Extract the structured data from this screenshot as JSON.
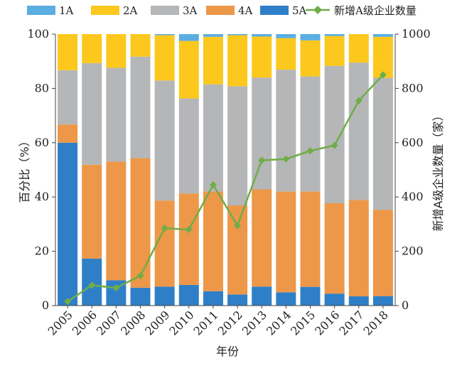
{
  "chart_data": {
    "type": "bar",
    "stacked": true,
    "x": [
      "2005",
      "2006",
      "2007",
      "2008",
      "2009",
      "2010",
      "2011",
      "2012",
      "2013",
      "2014",
      "2015",
      "2016",
      "2017",
      "2018"
    ],
    "xlabel": "年份",
    "ylabel": "百分比（%）",
    "y2label": "新增A级企业数量（家）",
    "ylim": [
      0,
      100
    ],
    "y2lim": [
      0,
      1000
    ],
    "yticks": [
      "0",
      "20",
      "40",
      "60",
      "80",
      "100"
    ],
    "y2ticks": [
      "0",
      "200",
      "400",
      "600",
      "800",
      "1000"
    ],
    "legend_position": "top",
    "series": [
      {
        "name": "5A",
        "color": "#2f7fc8",
        "values": [
          60.0,
          17.3,
          9.3,
          6.6,
          7.0,
          7.6,
          5.3,
          4.1,
          7.0,
          4.9,
          6.9,
          4.4,
          3.4,
          3.5
        ]
      },
      {
        "name": "4A",
        "color": "#ed9748",
        "values": [
          6.7,
          34.6,
          43.7,
          47.7,
          31.7,
          33.7,
          36.7,
          32.8,
          35.8,
          37.1,
          35.1,
          33.3,
          35.5,
          31.8
        ]
      },
      {
        "name": "3A",
        "color": "#b5b6b8",
        "values": [
          20.0,
          37.4,
          34.6,
          37.4,
          44.2,
          35.0,
          39.5,
          43.9,
          41.2,
          44.9,
          42.4,
          50.6,
          50.6,
          48.6
        ]
      },
      {
        "name": "2A",
        "color": "#fcc81e",
        "values": [
          13.3,
          10.7,
          12.4,
          8.3,
          16.7,
          21.2,
          17.5,
          18.8,
          15.1,
          11.6,
          13.3,
          11.0,
          10.5,
          15.1
        ]
      },
      {
        "name": "1A",
        "color": "#5aaee0",
        "values": [
          0.0,
          0.0,
          0.0,
          0.0,
          0.4,
          2.5,
          1.0,
          0.4,
          0.9,
          1.5,
          2.3,
          0.7,
          0.0,
          1.0
        ]
      }
    ],
    "line": {
      "name": "新增A级企业数量",
      "color": "#6fad47",
      "values": [
        15,
        75,
        65,
        110,
        285,
        280,
        445,
        295,
        535,
        540,
        570,
        590,
        755,
        850
      ]
    }
  }
}
